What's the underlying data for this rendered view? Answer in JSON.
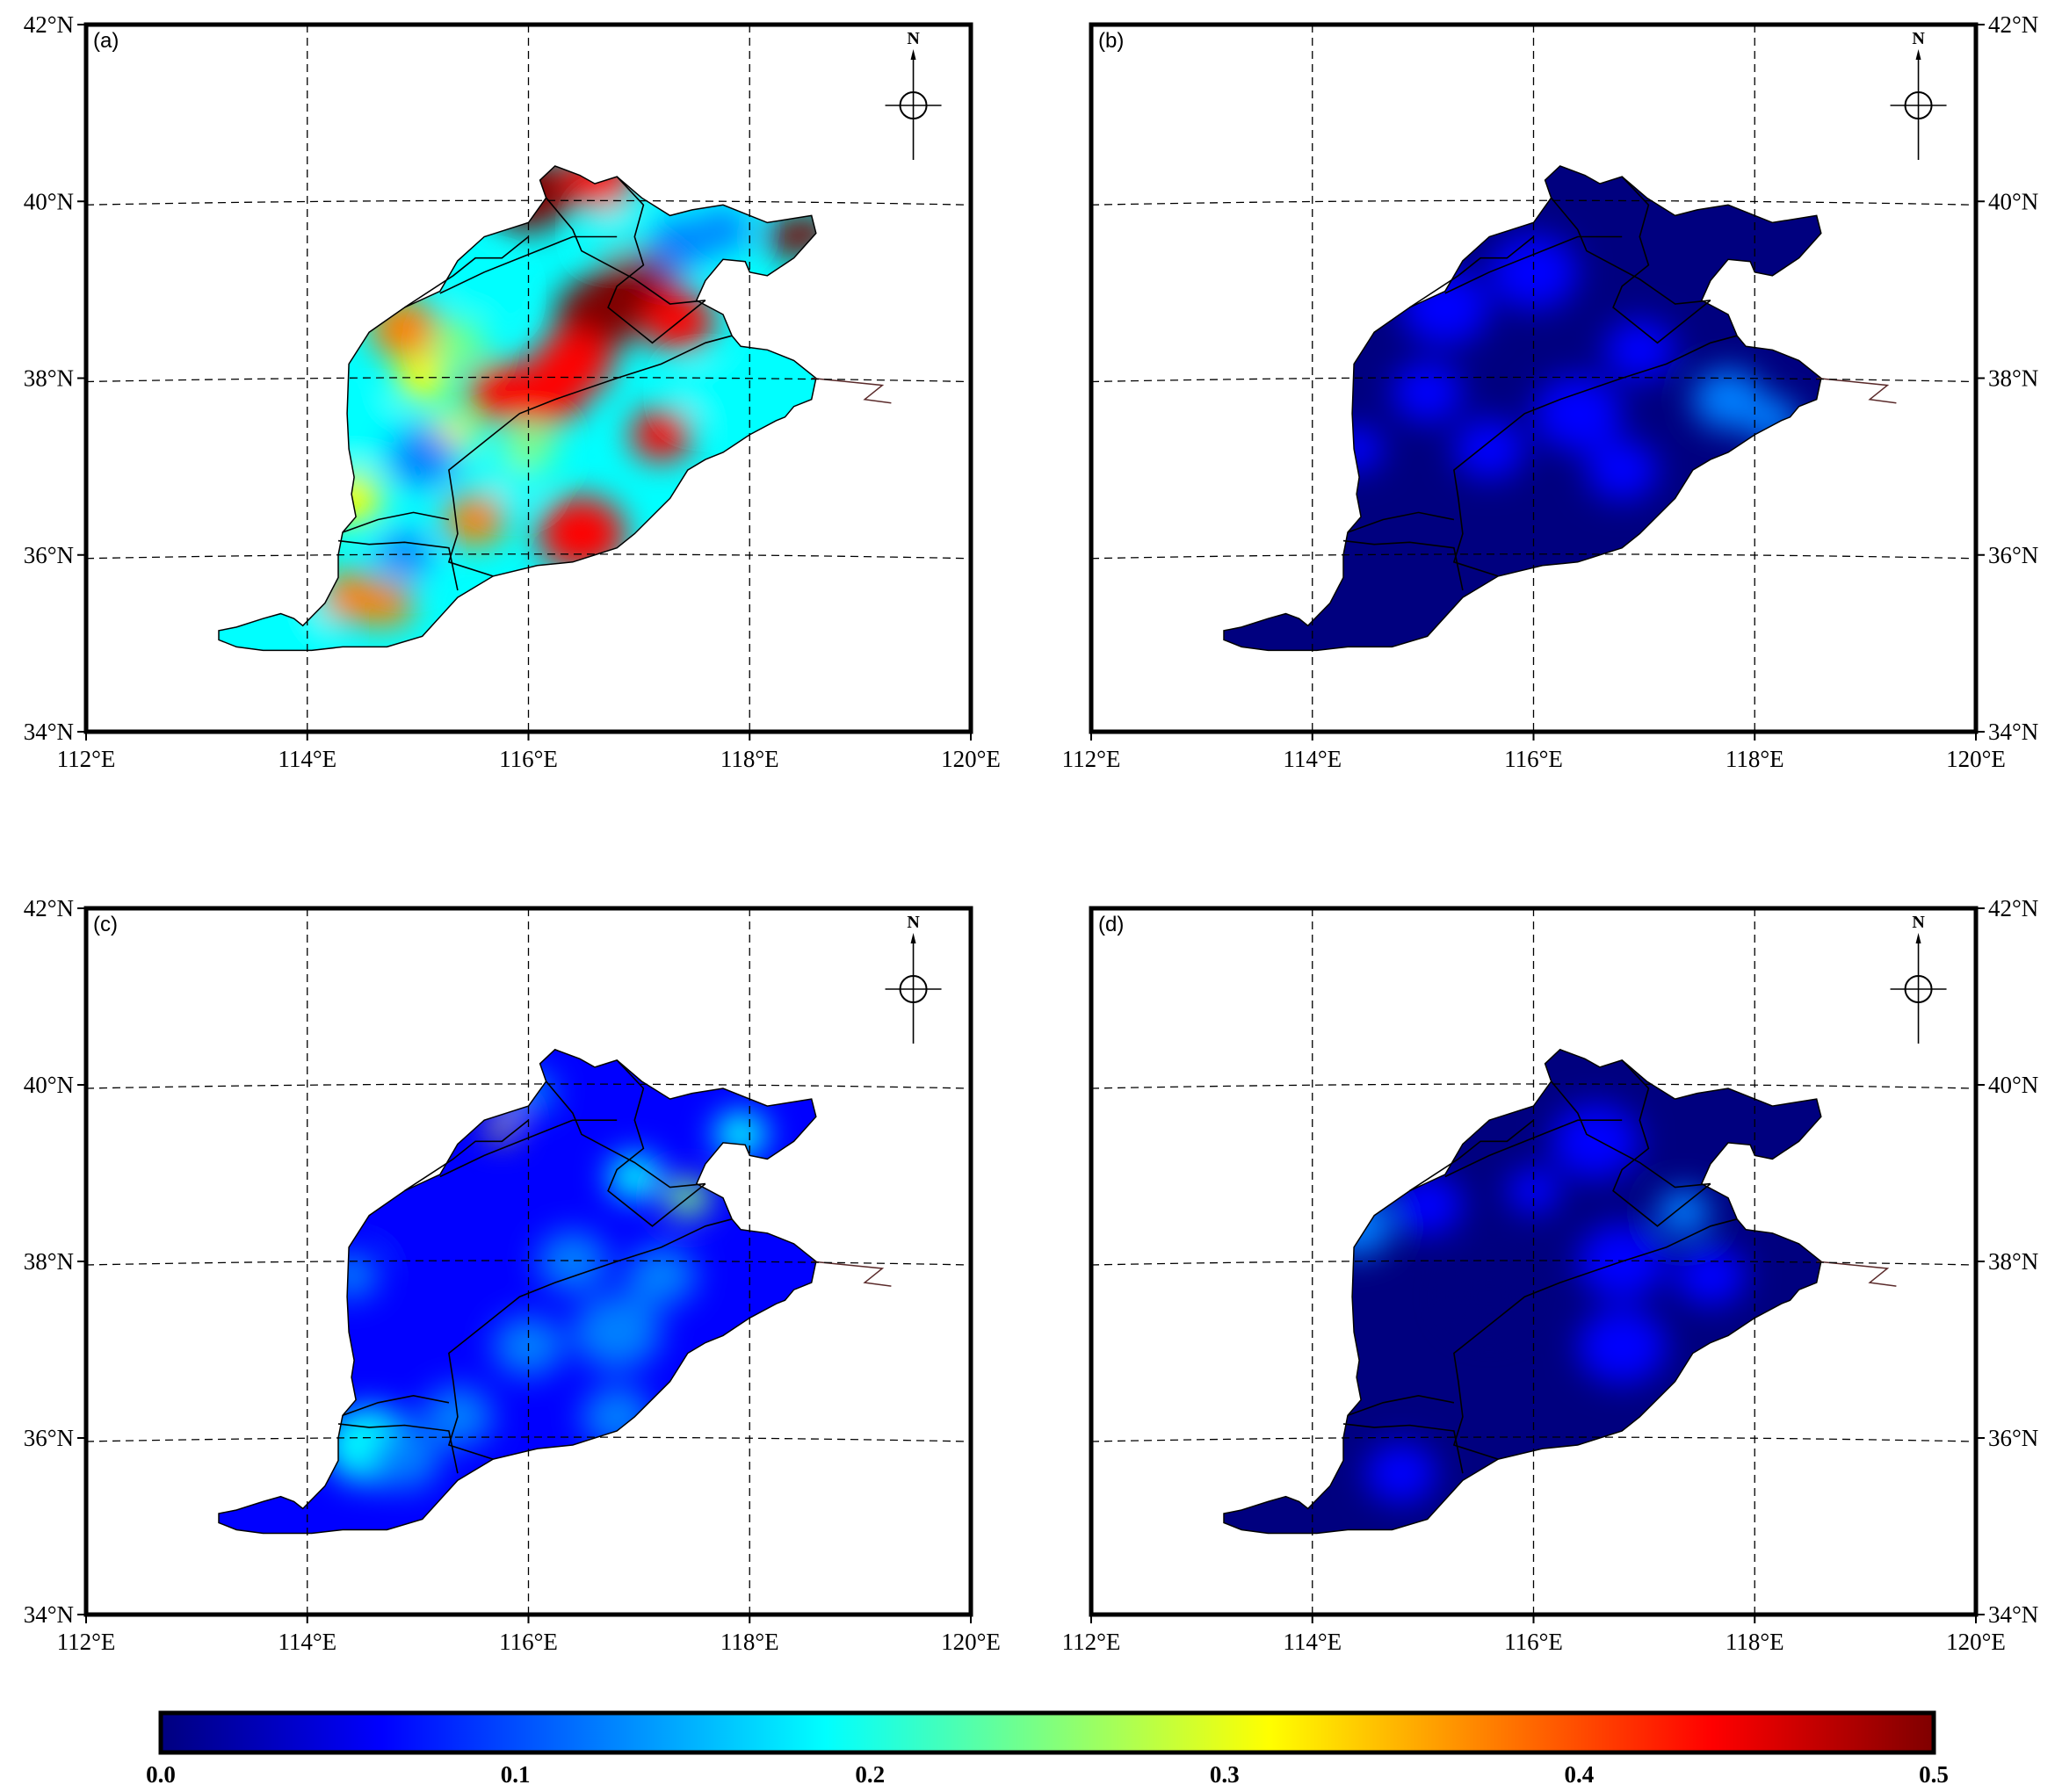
{
  "colors": {
    "colormap": [
      "#00007f",
      "#0000ff",
      "#007fff",
      "#00ffff",
      "#7fff7f",
      "#ffff00",
      "#ff7f00",
      "#ff0000",
      "#7f0000"
    ],
    "frame": "#000000",
    "grid": "#000000",
    "border": "#000000",
    "coast": "#5a2a2a"
  },
  "icons": {
    "north_arrow": "north-arrow-compass-icon"
  },
  "panels": [
    {
      "label": "(a)",
      "x_ticks": [
        "112°E",
        "114°E",
        "116°E",
        "118°E",
        "120°E"
      ],
      "y_ticks": [
        "34°N",
        "36°N",
        "38°N",
        "40°N",
        "42°N"
      ],
      "y_tick_side": "left",
      "north_label": "N",
      "field": "high-variance"
    },
    {
      "label": "(b)",
      "x_ticks": [
        "112°E",
        "114°E",
        "116°E",
        "118°E",
        "120°E"
      ],
      "y_ticks": [
        "34°N",
        "36°N",
        "38°N",
        "40°N",
        "42°N"
      ],
      "y_tick_side": "right",
      "north_label": "N",
      "field": "low"
    },
    {
      "label": "(c)",
      "x_ticks": [
        "112°E",
        "114°E",
        "116°E",
        "118°E",
        "120°E"
      ],
      "y_ticks": [
        "34°N",
        "36°N",
        "38°N",
        "40°N",
        "42°N"
      ],
      "y_tick_side": "left",
      "north_label": "N",
      "field": "medium-low"
    },
    {
      "label": "(d)",
      "x_ticks": [
        "112°E",
        "114°E",
        "116°E",
        "118°E",
        "120°E"
      ],
      "y_ticks": [
        "34°N",
        "36°N",
        "38°N",
        "40°N",
        "42°N"
      ],
      "y_tick_side": "right",
      "north_label": "N",
      "field": "very-low"
    }
  ],
  "colorbar": {
    "ticks": [
      "0.0",
      "0.1",
      "0.2",
      "0.3",
      "0.4",
      "0.5"
    ],
    "min": 0.0,
    "max": 0.5
  }
}
